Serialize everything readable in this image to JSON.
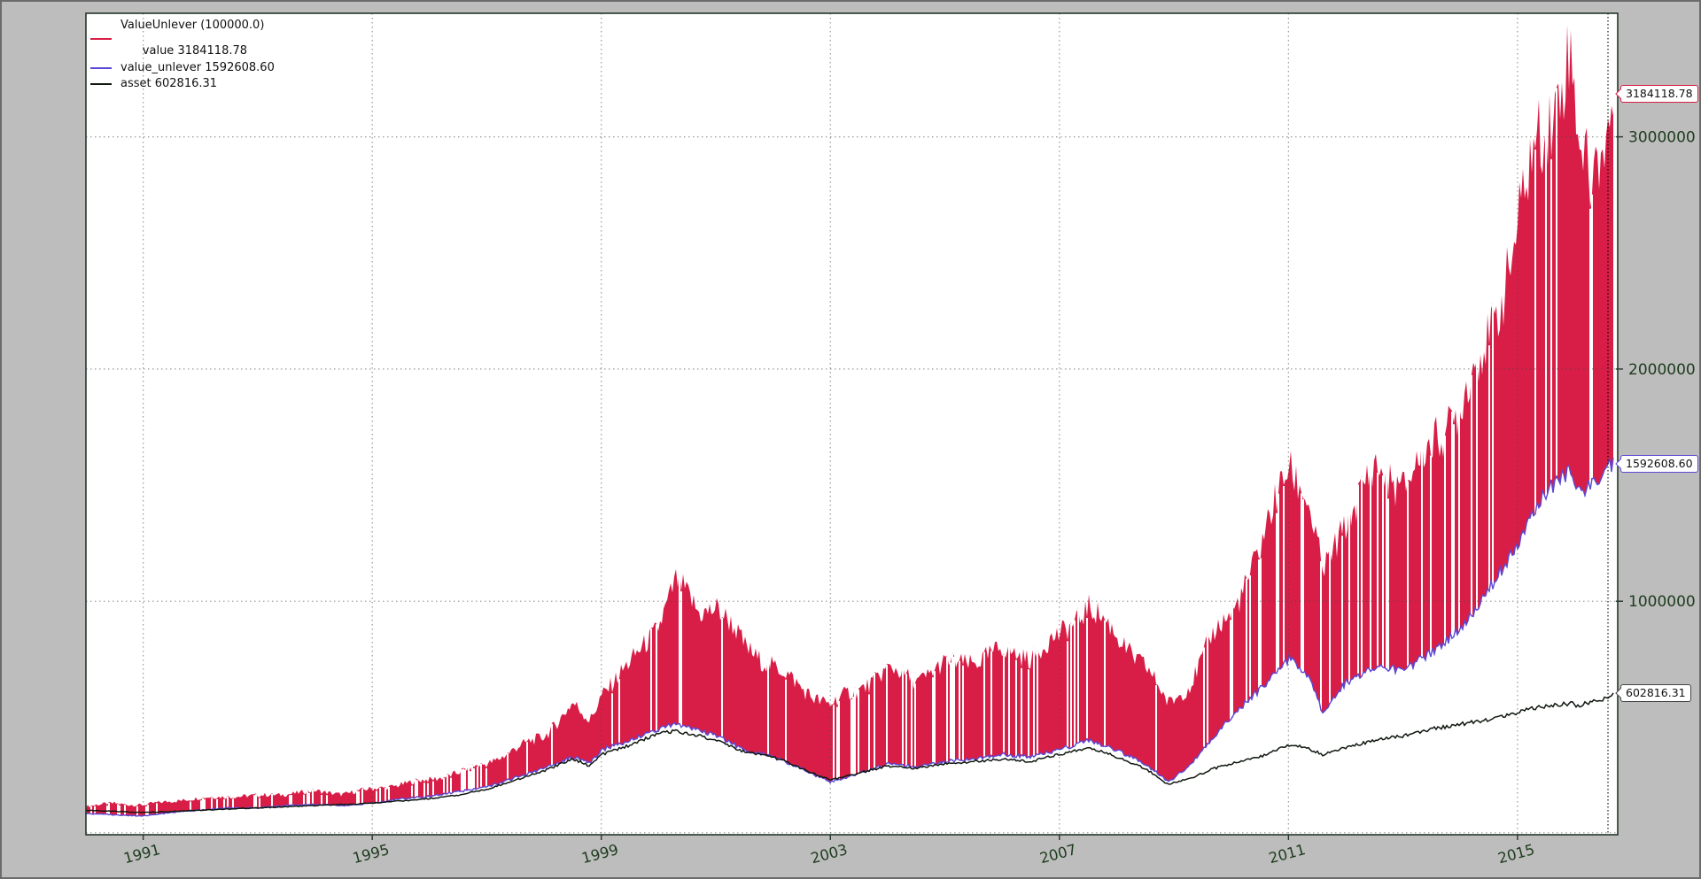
{
  "figure": {
    "background_color": "#bdbdbd",
    "plot_background_color": "#ffffff",
    "spine_color": "#26362a",
    "tick_label_color": "#1d3b1d",
    "grid_color_rgba": "rgba(70,70,70,0.55)",
    "marker_line_color": "rgba(0,0,0,0.85)"
  },
  "legend": {
    "entries": [
      {
        "color": "#d81e46",
        "label_lines": [
          "ValueUnlever (100000.0)",
          "value 3184118.78"
        ]
      },
      {
        "color": "#5b48d6",
        "label_lines": [
          "value_unlever 1592608.60"
        ]
      },
      {
        "color": "#101810",
        "label_lines": [
          "asset 602816.31"
        ]
      }
    ]
  },
  "axis": {
    "x_ticks": [
      {
        "label": "1991",
        "year": 1991
      },
      {
        "label": "1995",
        "year": 1995
      },
      {
        "label": "1999",
        "year": 1999
      },
      {
        "label": "2003",
        "year": 2003
      },
      {
        "label": "2007",
        "year": 2007
      },
      {
        "label": "2011",
        "year": 2011
      },
      {
        "label": "2015",
        "year": 2015
      }
    ],
    "y_ticks": [
      {
        "label": "3000000",
        "value": 3000000
      },
      {
        "label": "2000000",
        "value": 2000000
      },
      {
        "label": "1000000",
        "value": 1000000
      },
      {
        "label": "",
        "value": 0
      }
    ]
  },
  "value_tags": [
    {
      "text": "3184118.78",
      "border_color": "#d81e46",
      "value": 3184118.78
    },
    {
      "text": "1592608.60",
      "border_color": "#5b48d6",
      "value": 1592608.6
    },
    {
      "text": "602816.31",
      "border_color": "#444444",
      "value": 602816.31
    }
  ],
  "chart_data": {
    "type": "area",
    "title": "",
    "xlabel": "",
    "ylabel": "",
    "grid": "dotted",
    "legend_position": "upper-left",
    "initial_cash": 100000.0,
    "xlim": [
      1990.0,
      2016.75
    ],
    "ylim": [
      0,
      3530000
    ],
    "marker_vline_year": 2016.58,
    "series_meta": [
      {
        "name": "value",
        "final": 3184118.78,
        "color": "#d81e46",
        "style": "band"
      },
      {
        "name": "value_unlever",
        "final": 1592608.6,
        "color": "#5b48d6",
        "style": "line"
      },
      {
        "name": "asset",
        "final": 602816.31,
        "color": "#101810",
        "style": "line"
      }
    ],
    "x_years": [
      1990.0,
      1990.5,
      1991.0,
      1991.5,
      1992.0,
      1992.5,
      1993.0,
      1993.5,
      1994.0,
      1994.5,
      1995.0,
      1995.5,
      1996.0,
      1996.5,
      1997.0,
      1997.5,
      1998.0,
      1998.5,
      1998.8,
      1999.0,
      1999.5,
      2000.0,
      2000.3,
      2000.7,
      2001.0,
      2001.5,
      2002.0,
      2002.5,
      2003.0,
      2003.5,
      2004.0,
      2004.5,
      2005.0,
      2005.5,
      2006.0,
      2006.5,
      2007.0,
      2007.5,
      2008.0,
      2008.5,
      2008.9,
      2009.3,
      2009.7,
      2010.0,
      2010.5,
      2011.0,
      2011.3,
      2011.6,
      2012.0,
      2012.5,
      2013.0,
      2013.5,
      2014.0,
      2014.5,
      2015.0,
      2015.3,
      2015.6,
      2015.9,
      2016.1,
      2016.3,
      2016.5,
      2016.7
    ],
    "value_high": [
      115000,
      130000,
      120000,
      140000,
      150000,
      160000,
      160000,
      170000,
      180000,
      170000,
      190000,
      210000,
      230000,
      260000,
      300000,
      360000,
      420000,
      550000,
      480000,
      600000,
      720000,
      900000,
      1070000,
      950000,
      980000,
      800000,
      720000,
      620000,
      550000,
      620000,
      700000,
      660000,
      720000,
      740000,
      780000,
      760000,
      840000,
      980000,
      840000,
      720000,
      550000,
      650000,
      850000,
      950000,
      1200000,
      1600000,
      1450000,
      1100000,
      1350000,
      1550000,
      1500000,
      1650000,
      1850000,
      2100000,
      2600000,
      2900000,
      3100000,
      3370000,
      2900000,
      2750000,
      3000000,
      3184118.78
    ],
    "value_low_unlever": [
      85000,
      80000,
      75000,
      90000,
      100000,
      110000,
      110000,
      120000,
      125000,
      120000,
      130000,
      150000,
      160000,
      180000,
      200000,
      240000,
      280000,
      330000,
      300000,
      360000,
      400000,
      450000,
      470000,
      440000,
      420000,
      360000,
      330000,
      280000,
      220000,
      260000,
      300000,
      290000,
      310000,
      320000,
      340000,
      330000,
      360000,
      400000,
      360000,
      300000,
      220000,
      300000,
      420000,
      500000,
      620000,
      750000,
      700000,
      520000,
      650000,
      720000,
      700000,
      780000,
      880000,
      1050000,
      1250000,
      1400000,
      1500000,
      1550000,
      1470000,
      1500000,
      1550000,
      1592608.6
    ],
    "asset": [
      100000,
      95000,
      90000,
      95000,
      100000,
      105000,
      110000,
      115000,
      120000,
      125000,
      130000,
      140000,
      150000,
      165000,
      190000,
      230000,
      270000,
      320000,
      290000,
      340000,
      380000,
      430000,
      440000,
      420000,
      400000,
      350000,
      330000,
      280000,
      230000,
      260000,
      290000,
      280000,
      300000,
      310000,
      320000,
      310000,
      340000,
      370000,
      330000,
      280000,
      210000,
      240000,
      280000,
      300000,
      330000,
      380000,
      370000,
      340000,
      370000,
      400000,
      420000,
      450000,
      470000,
      490000,
      520000,
      540000,
      550000,
      560000,
      550000,
      570000,
      580000,
      602816.31
    ]
  }
}
